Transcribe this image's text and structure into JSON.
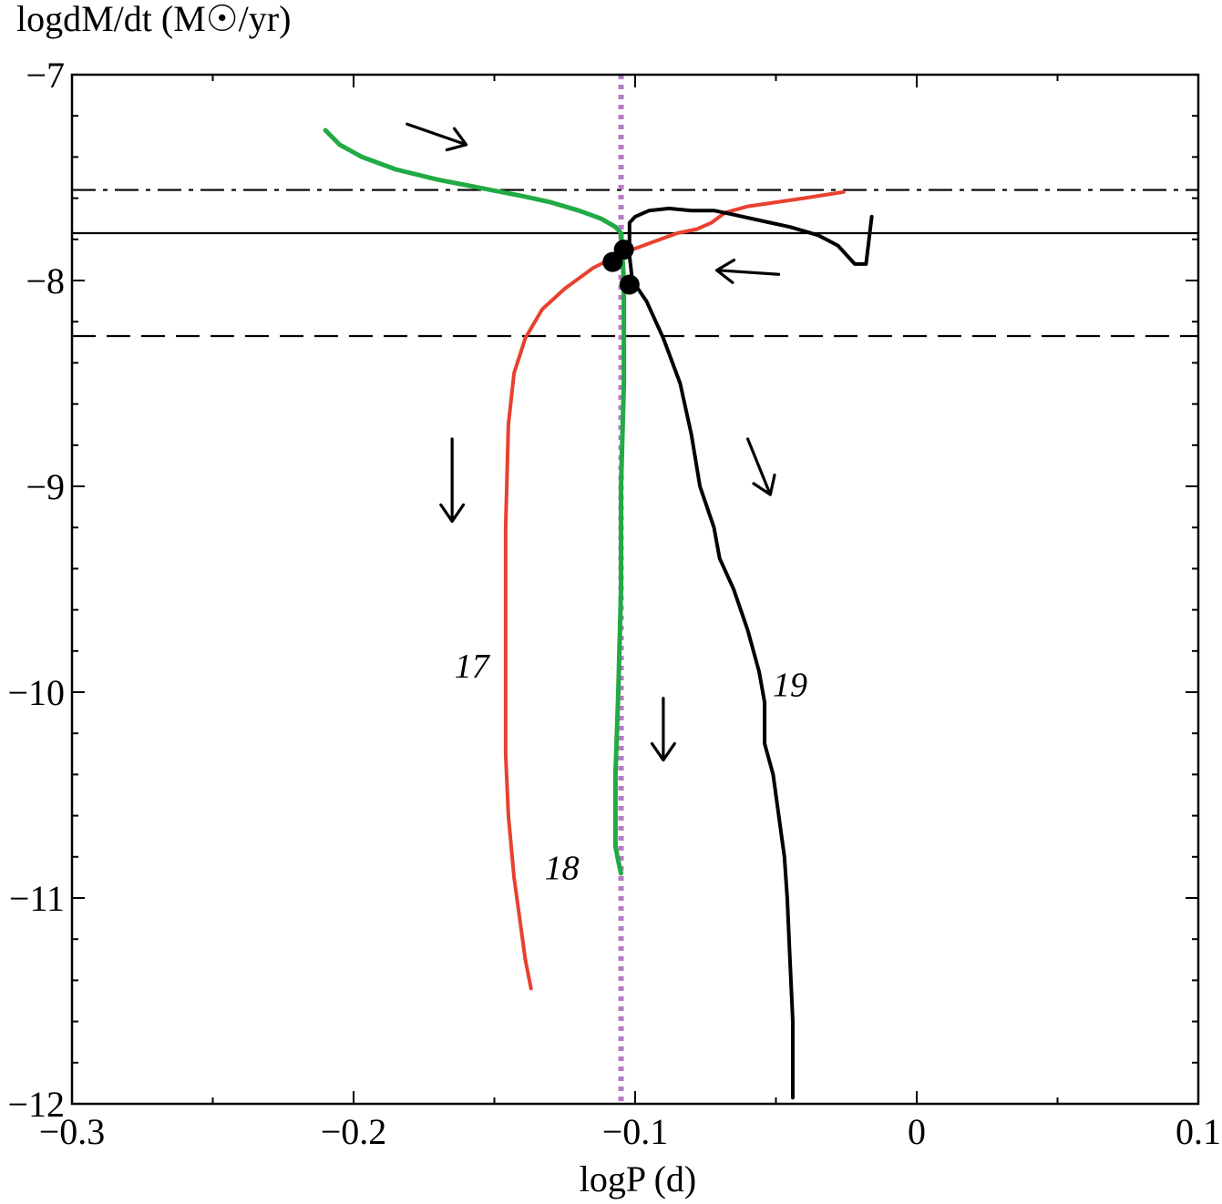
{
  "chart_data": {
    "type": "line",
    "ylabel": "logdM/dt (M☉/yr)",
    "xlabel": "logP (d)",
    "xlim": [
      -0.3,
      0.1
    ],
    "ylim": [
      -12,
      -7
    ],
    "xticks": [
      -0.3,
      -0.2,
      -0.1,
      0,
      0.1
    ],
    "xtick_labels": [
      "−0.3",
      "−0.2",
      "−0.1",
      "0",
      "0.1"
    ],
    "yticks": [
      -7,
      -8,
      -9,
      -10,
      -11,
      -12
    ],
    "ytick_labels": [
      "−7",
      "−8",
      "−9",
      "−10",
      "−11",
      "−12"
    ],
    "colors": {
      "series_17": "#e8412f",
      "series_18": "#22aa44",
      "series_19": "#000000",
      "vertical_ref": "#b57cc6"
    },
    "reference_lines": [
      {
        "name": "dash-dot",
        "orientation": "horizontal",
        "style": "dashdot",
        "y": -7.56
      },
      {
        "name": "solid",
        "orientation": "horizontal",
        "style": "solid",
        "y": -7.77
      },
      {
        "name": "dashed",
        "orientation": "horizontal",
        "style": "dashed",
        "y": -8.27
      },
      {
        "name": "dotted",
        "orientation": "vertical",
        "style": "dotted",
        "x": -0.105
      }
    ],
    "series": [
      {
        "name": "17",
        "label": "17",
        "label_pos": [
          -0.158,
          -9.93
        ],
        "marker": [
          -0.108,
          -7.91
        ],
        "points": [
          [
            -0.026,
            -7.57
          ],
          [
            -0.04,
            -7.6
          ],
          [
            -0.05,
            -7.62
          ],
          [
            -0.06,
            -7.64
          ],
          [
            -0.068,
            -7.67
          ],
          [
            -0.073,
            -7.72
          ],
          [
            -0.078,
            -7.75
          ],
          [
            -0.085,
            -7.77
          ],
          [
            -0.095,
            -7.82
          ],
          [
            -0.105,
            -7.87
          ],
          [
            -0.115,
            -7.94
          ],
          [
            -0.125,
            -8.04
          ],
          [
            -0.133,
            -8.14
          ],
          [
            -0.139,
            -8.28
          ],
          [
            -0.143,
            -8.45
          ],
          [
            -0.145,
            -8.7
          ],
          [
            -0.146,
            -9.2
          ],
          [
            -0.146,
            -9.8
          ],
          [
            -0.146,
            -10.15
          ],
          [
            -0.146,
            -10.3
          ],
          [
            -0.145,
            -10.6
          ],
          [
            -0.143,
            -10.9
          ],
          [
            -0.141,
            -11.1
          ],
          [
            -0.139,
            -11.3
          ],
          [
            -0.137,
            -11.44
          ]
        ]
      },
      {
        "name": "18",
        "label": "18",
        "label_pos": [
          -0.126,
          -10.91
        ],
        "marker": [
          -0.104,
          -7.85
        ],
        "points": [
          [
            -0.21,
            -7.27
          ],
          [
            -0.205,
            -7.34
          ],
          [
            -0.197,
            -7.4
          ],
          [
            -0.185,
            -7.46
          ],
          [
            -0.17,
            -7.51
          ],
          [
            -0.155,
            -7.55
          ],
          [
            -0.14,
            -7.59
          ],
          [
            -0.13,
            -7.62
          ],
          [
            -0.12,
            -7.66
          ],
          [
            -0.112,
            -7.7
          ],
          [
            -0.107,
            -7.74
          ],
          [
            -0.105,
            -7.77
          ],
          [
            -0.104,
            -8.0
          ],
          [
            -0.104,
            -8.5
          ],
          [
            -0.105,
            -9.0
          ],
          [
            -0.105,
            -9.5
          ],
          [
            -0.106,
            -10.0
          ],
          [
            -0.107,
            -10.4
          ],
          [
            -0.107,
            -10.75
          ],
          [
            -0.106,
            -10.82
          ],
          [
            -0.105,
            -10.88
          ]
        ]
      },
      {
        "name": "19",
        "label": "19",
        "label_pos": [
          -0.045,
          -10.02
        ],
        "marker": [
          -0.102,
          -8.02
        ],
        "points": [
          [
            -0.016,
            -7.69
          ],
          [
            -0.018,
            -7.92
          ],
          [
            -0.022,
            -7.92
          ],
          [
            -0.028,
            -7.83
          ],
          [
            -0.035,
            -7.78
          ],
          [
            -0.045,
            -7.74
          ],
          [
            -0.055,
            -7.71
          ],
          [
            -0.065,
            -7.68
          ],
          [
            -0.072,
            -7.66
          ],
          [
            -0.08,
            -7.66
          ],
          [
            -0.088,
            -7.65
          ],
          [
            -0.095,
            -7.66
          ],
          [
            -0.1,
            -7.69
          ],
          [
            -0.102,
            -7.72
          ],
          [
            -0.102,
            -7.88
          ],
          [
            -0.101,
            -8.0
          ],
          [
            -0.096,
            -8.1
          ],
          [
            -0.09,
            -8.28
          ],
          [
            -0.084,
            -8.5
          ],
          [
            -0.08,
            -8.75
          ],
          [
            -0.077,
            -9.0
          ],
          [
            -0.072,
            -9.2
          ],
          [
            -0.07,
            -9.35
          ],
          [
            -0.065,
            -9.5
          ],
          [
            -0.06,
            -9.7
          ],
          [
            -0.056,
            -9.9
          ],
          [
            -0.054,
            -10.05
          ],
          [
            -0.054,
            -10.25
          ],
          [
            -0.051,
            -10.4
          ],
          [
            -0.049,
            -10.6
          ],
          [
            -0.047,
            -10.8
          ],
          [
            -0.046,
            -11.0
          ],
          [
            -0.045,
            -11.3
          ],
          [
            -0.044,
            -11.6
          ],
          [
            -0.044,
            -11.9
          ],
          [
            -0.044,
            -11.97
          ]
        ]
      }
    ],
    "arrows": [
      {
        "from": [
          -0.181,
          -7.24
        ],
        "to": [
          -0.16,
          -7.34
        ]
      },
      {
        "from": [
          -0.049,
          -7.97
        ],
        "to": [
          -0.071,
          -7.95
        ]
      },
      {
        "from": [
          -0.165,
          -8.77
        ],
        "to": [
          -0.165,
          -9.17
        ]
      },
      {
        "from": [
          -0.06,
          -8.77
        ],
        "to": [
          -0.052,
          -9.04
        ]
      },
      {
        "from": [
          -0.09,
          -10.03
        ],
        "to": [
          -0.09,
          -10.33
        ]
      }
    ]
  }
}
